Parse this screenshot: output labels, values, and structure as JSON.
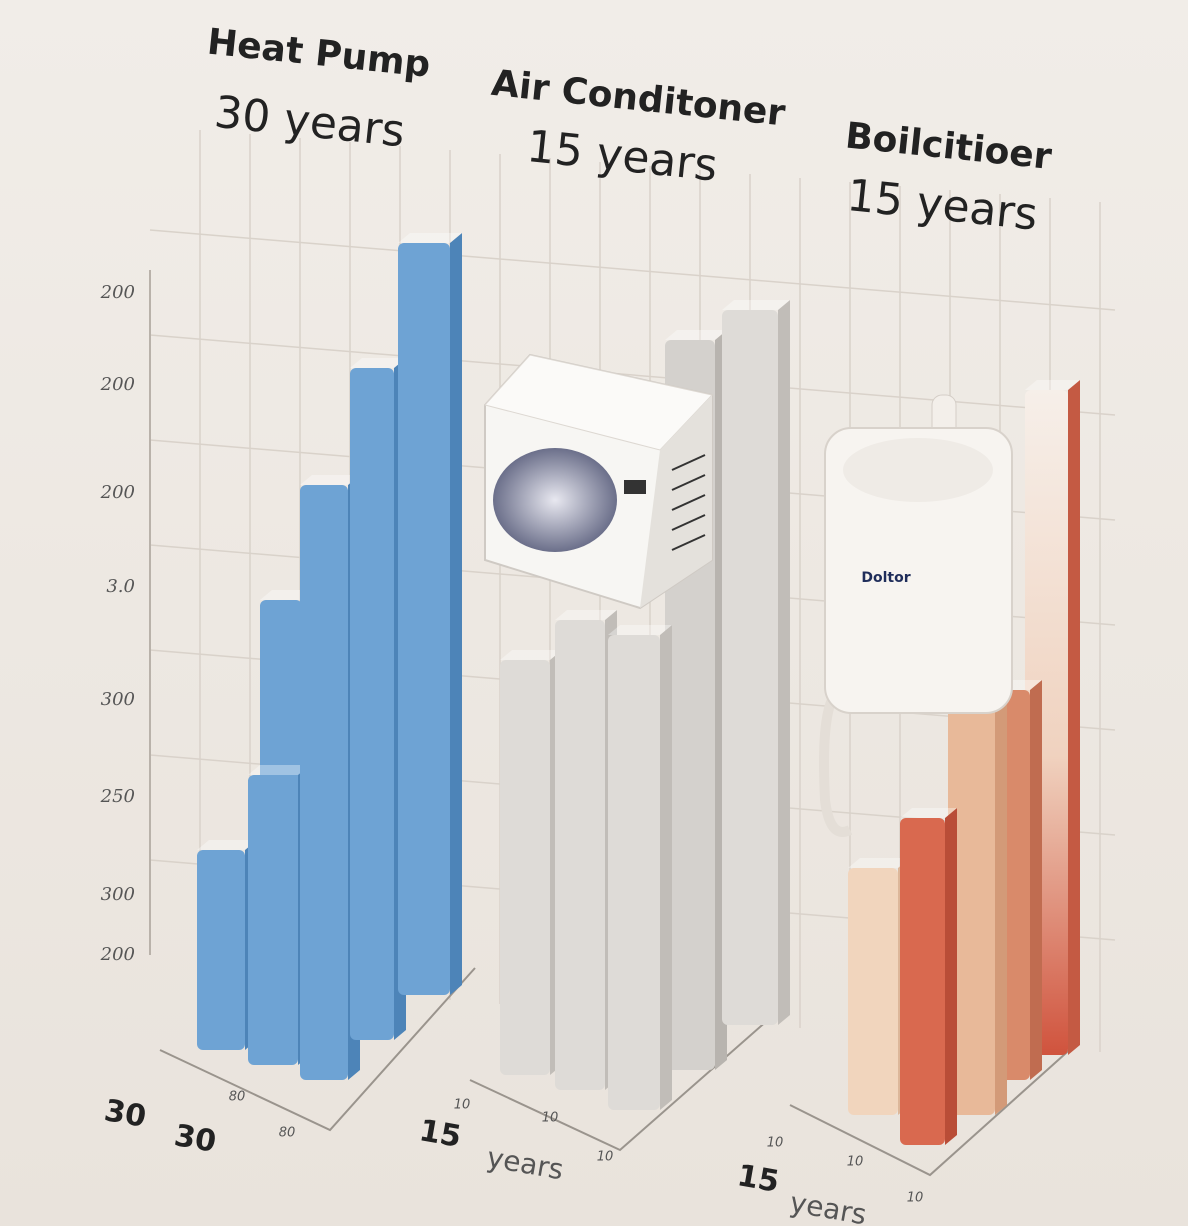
{
  "groups": [
    {
      "title": "Heat Pump",
      "lifespan": "30 years"
    },
    {
      "title": "Air Conditoner",
      "lifespan": "15 years"
    },
    {
      "title": "Boilcitioer",
      "lifespan": "15 years"
    }
  ],
  "axis_labels": [
    "200",
    "200",
    "200",
    "3.0",
    "300",
    "250",
    "300",
    "200"
  ],
  "base_labels": [
    "30",
    "30",
    "15",
    "years",
    "15",
    "years"
  ],
  "base_ticks": [
    "80",
    "80",
    "10",
    "10",
    "10",
    "10",
    "10",
    "10"
  ],
  "boiler_label": "Doltor"
}
